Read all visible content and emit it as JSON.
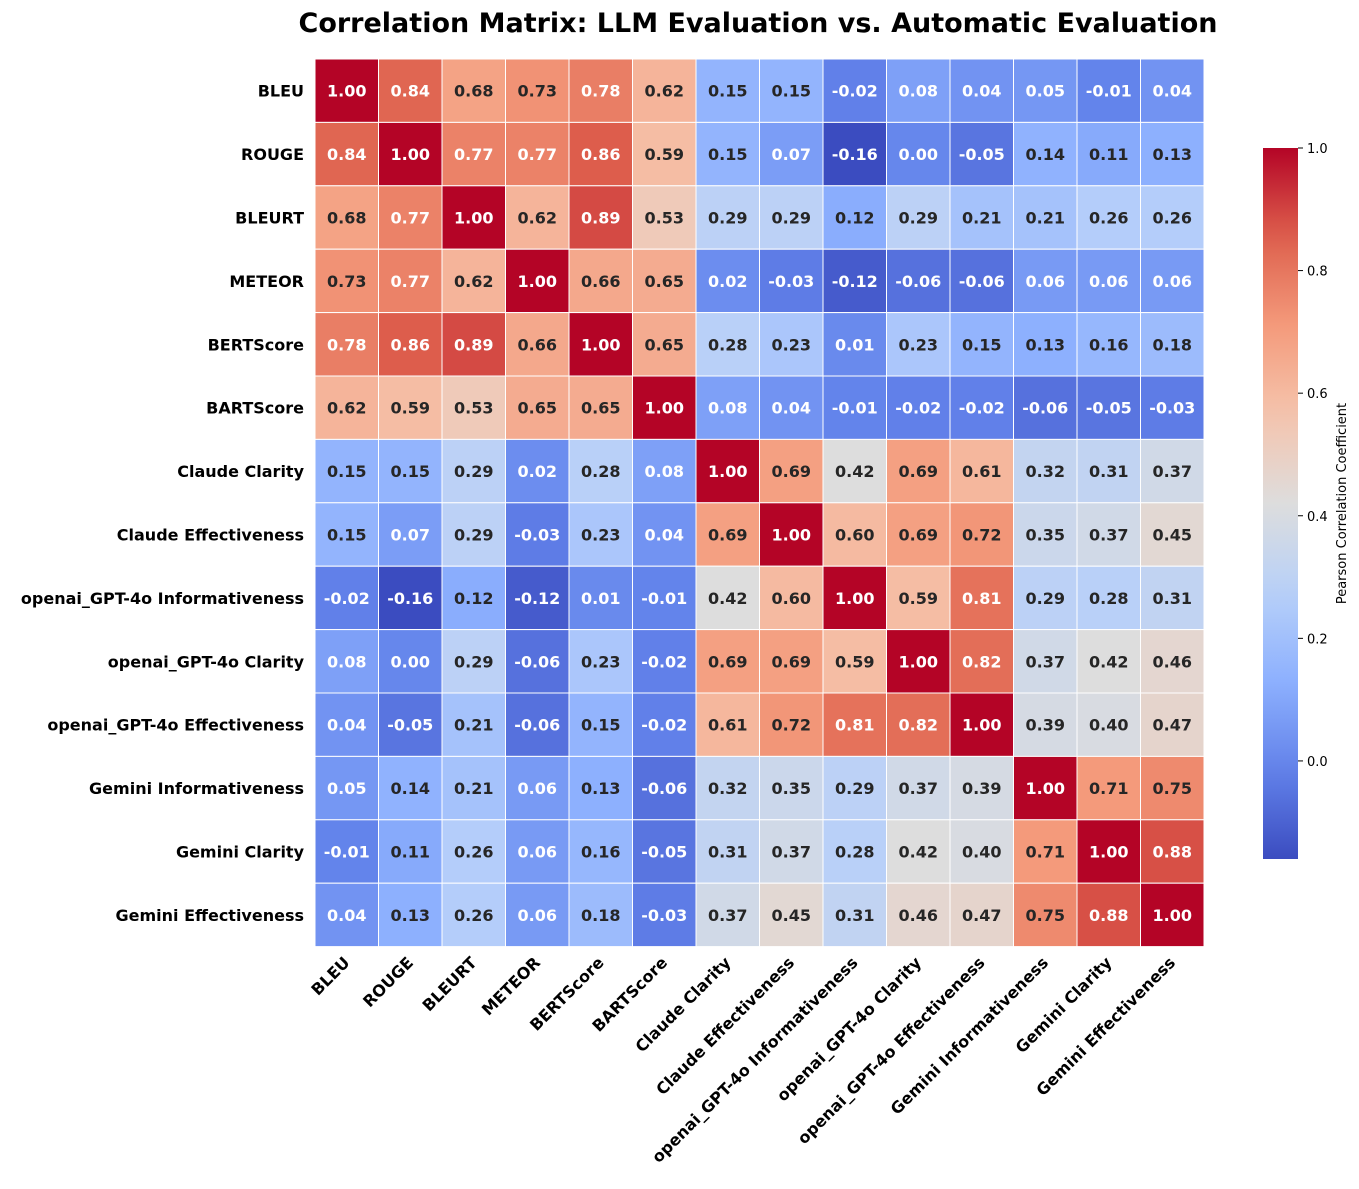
{
  "chart_data": {
    "type": "heatmap",
    "title": "Correlation Matrix: LLM Evaluation vs. Automatic Evaluation",
    "labels": [
      "BLEU",
      "ROUGE",
      "BLEURT",
      "METEOR",
      "BERTScore",
      "BARTScore",
      "Claude Clarity",
      "Claude Effectiveness",
      "openai_GPT-4o Informativeness",
      "openai_GPT-4o Clarity",
      "openai_GPT-4o Effectiveness",
      "Gemini Informativeness",
      "Gemini Clarity",
      "Gemini Effectiveness"
    ],
    "values": [
      [
        1.0,
        0.84,
        0.68,
        0.73,
        0.78,
        0.62,
        0.15,
        0.15,
        -0.02,
        0.08,
        0.04,
        0.05,
        -0.01,
        0.04
      ],
      [
        0.84,
        1.0,
        0.77,
        0.77,
        0.86,
        0.59,
        0.15,
        0.07,
        -0.16,
        0.0,
        -0.05,
        0.14,
        0.11,
        0.13
      ],
      [
        0.68,
        0.77,
        1.0,
        0.62,
        0.89,
        0.53,
        0.29,
        0.29,
        0.12,
        0.29,
        0.21,
        0.21,
        0.26,
        0.26
      ],
      [
        0.73,
        0.77,
        0.62,
        1.0,
        0.66,
        0.65,
        0.02,
        -0.03,
        -0.12,
        -0.06,
        -0.06,
        0.06,
        0.06,
        0.06
      ],
      [
        0.78,
        0.86,
        0.89,
        0.66,
        1.0,
        0.65,
        0.28,
        0.23,
        0.01,
        0.23,
        0.15,
        0.13,
        0.16,
        0.18
      ],
      [
        0.62,
        0.59,
        0.53,
        0.65,
        0.65,
        1.0,
        0.08,
        0.04,
        -0.01,
        -0.02,
        -0.02,
        -0.06,
        -0.05,
        -0.03
      ],
      [
        0.15,
        0.15,
        0.29,
        0.02,
        0.28,
        0.08,
        1.0,
        0.69,
        0.42,
        0.69,
        0.61,
        0.32,
        0.31,
        0.37
      ],
      [
        0.15,
        0.07,
        0.29,
        -0.03,
        0.23,
        0.04,
        0.69,
        1.0,
        0.6,
        0.69,
        0.72,
        0.35,
        0.37,
        0.45
      ],
      [
        -0.02,
        -0.16,
        0.12,
        -0.12,
        0.01,
        -0.01,
        0.42,
        0.6,
        1.0,
        0.59,
        0.81,
        0.29,
        0.28,
        0.31
      ],
      [
        0.08,
        0.0,
        0.29,
        -0.06,
        0.23,
        -0.02,
        0.69,
        0.69,
        0.59,
        1.0,
        0.82,
        0.37,
        0.42,
        0.46
      ],
      [
        0.04,
        -0.05,
        0.21,
        -0.06,
        0.15,
        -0.02,
        0.61,
        0.72,
        0.81,
        0.82,
        1.0,
        0.39,
        0.4,
        0.47
      ],
      [
        0.05,
        0.14,
        0.21,
        0.06,
        0.13,
        -0.06,
        0.32,
        0.35,
        0.29,
        0.37,
        0.39,
        1.0,
        0.71,
        0.75
      ],
      [
        -0.01,
        0.11,
        0.26,
        0.06,
        0.16,
        -0.05,
        0.31,
        0.37,
        0.28,
        0.42,
        0.4,
        0.71,
        1.0,
        0.88
      ],
      [
        0.04,
        0.13,
        0.26,
        0.06,
        0.18,
        -0.03,
        0.37,
        0.45,
        0.31,
        0.46,
        0.47,
        0.75,
        0.88,
        1.0
      ]
    ],
    "colormap": "coolwarm",
    "vmin": -0.16,
    "vmax": 1.0,
    "colorbar": {
      "label": "Pearson Correlation Coefficient",
      "ticks": [
        0.0,
        0.2,
        0.4,
        0.6,
        0.8,
        1.0
      ],
      "tick_labels": [
        "0.0",
        "0.2",
        "0.4",
        "0.6",
        "0.8",
        "1.0"
      ]
    },
    "annotation_format": "2 decimals",
    "grid": false,
    "cell_border_color": "#ffffff"
  }
}
